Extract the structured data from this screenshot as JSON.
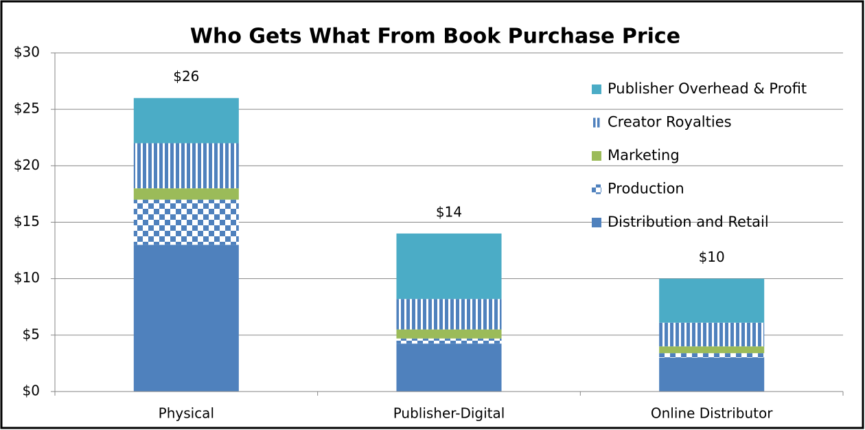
{
  "chart_data": {
    "type": "stacked_bar",
    "title": "Who Gets What From Book Purchase Price",
    "categories": [
      "Physical",
      "Publisher-Digital",
      "Online Distributor"
    ],
    "series": [
      {
        "name": "Distribution and Retail",
        "color": "#4f81bd",
        "pattern": "solid",
        "values": [
          13,
          4.25,
          3
        ]
      },
      {
        "name": "Production",
        "color": "#4f81bd",
        "pattern": "checker",
        "values": [
          4,
          0.45,
          0.4
        ]
      },
      {
        "name": "Marketing",
        "color": "#9bbb59",
        "pattern": "solid",
        "values": [
          1,
          0.8,
          0.6
        ]
      },
      {
        "name": "Creator Royalties",
        "color": "#4f81bd",
        "pattern": "vstripe",
        "values": [
          4,
          2.7,
          2.1
        ]
      },
      {
        "name": "Publisher Overhead & Profit",
        "color": "#4bacc6",
        "pattern": "solid",
        "values": [
          4,
          5.8,
          3.9
        ]
      }
    ],
    "totals": [
      26,
      14,
      10
    ],
    "total_labels": [
      "$26",
      "$14",
      "$10"
    ],
    "ylim": [
      0,
      30
    ],
    "yticks": [
      {
        "value": 0,
        "label": "$0"
      },
      {
        "value": 5,
        "label": "$5"
      },
      {
        "value": 10,
        "label": "$10"
      },
      {
        "value": 15,
        "label": "$15"
      },
      {
        "value": 20,
        "label": "$20"
      },
      {
        "value": 25,
        "label": "$25"
      },
      {
        "value": 30,
        "label": "$30"
      }
    ],
    "grid": true,
    "legend": "upper right"
  }
}
